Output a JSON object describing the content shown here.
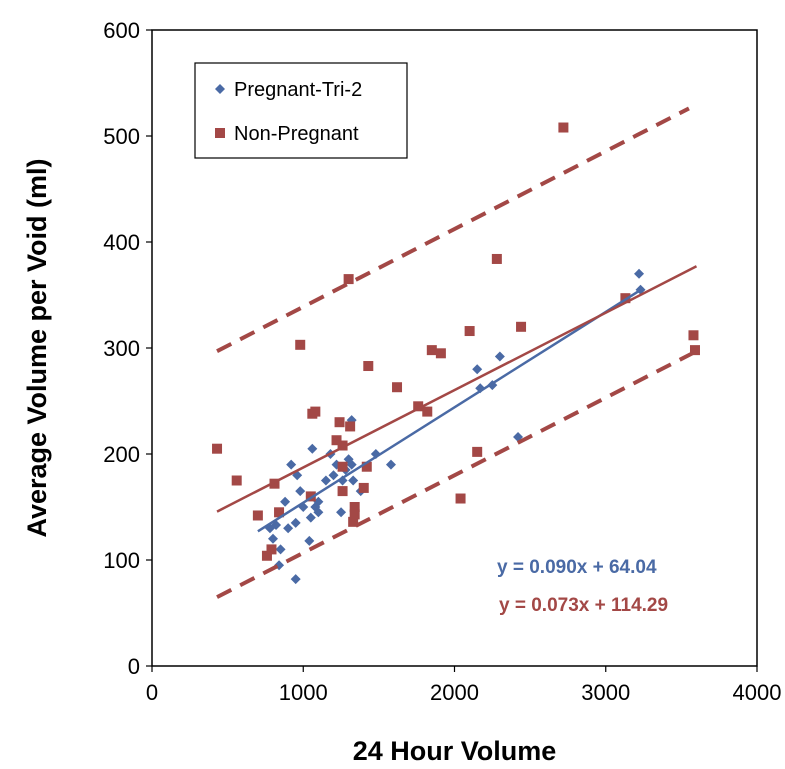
{
  "chart_data": {
    "type": "scatter",
    "xlabel": "24 Hour Volume",
    "ylabel": "Average Volume per Void (ml)",
    "xlim": [
      0,
      4000
    ],
    "ylim": [
      0,
      600
    ],
    "x_ticks": [
      "0",
      "1000",
      "2000",
      "3000",
      "4000"
    ],
    "y_ticks": [
      "0",
      "100",
      "200",
      "300",
      "400",
      "500",
      "600"
    ],
    "grid": false,
    "legend_position": "top-left",
    "series": [
      {
        "name": "Pregnant-Tri-2",
        "color": "#4a6aa5",
        "marker": "diamond",
        "points": [
          [
            780,
            130
          ],
          [
            800,
            120
          ],
          [
            820,
            133
          ],
          [
            840,
            95
          ],
          [
            850,
            110
          ],
          [
            880,
            155
          ],
          [
            900,
            130
          ],
          [
            920,
            190
          ],
          [
            950,
            82
          ],
          [
            950,
            135
          ],
          [
            960,
            180
          ],
          [
            980,
            165
          ],
          [
            1000,
            150
          ],
          [
            1040,
            118
          ],
          [
            1050,
            140
          ],
          [
            1050,
            160
          ],
          [
            1060,
            205
          ],
          [
            1080,
            150
          ],
          [
            1100,
            145
          ],
          [
            1100,
            155
          ],
          [
            1150,
            175
          ],
          [
            1180,
            200
          ],
          [
            1200,
            180
          ],
          [
            1220,
            190
          ],
          [
            1250,
            145
          ],
          [
            1260,
            175
          ],
          [
            1280,
            185
          ],
          [
            1300,
            195
          ],
          [
            1320,
            190
          ],
          [
            1320,
            232
          ],
          [
            1330,
            175
          ],
          [
            1380,
            165
          ],
          [
            1480,
            200
          ],
          [
            1580,
            190
          ],
          [
            2150,
            280
          ],
          [
            2170,
            262
          ],
          [
            2250,
            265
          ],
          [
            2300,
            292
          ],
          [
            2420,
            216
          ],
          [
            3220,
            370
          ],
          [
            3230,
            355
          ]
        ],
        "trendline": {
          "slope": 0.09,
          "intercept": 64.04,
          "x_range": [
            700,
            3250
          ],
          "equation": "y = 0.090x + 64.04"
        }
      },
      {
        "name": "Non-Pregnant",
        "color": "#a34846",
        "marker": "square",
        "points": [
          [
            430,
            205
          ],
          [
            560,
            175
          ],
          [
            700,
            142
          ],
          [
            760,
            104
          ],
          [
            790,
            110
          ],
          [
            810,
            172
          ],
          [
            840,
            145
          ],
          [
            980,
            303
          ],
          [
            1050,
            160
          ],
          [
            1060,
            238
          ],
          [
            1080,
            240
          ],
          [
            1220,
            213
          ],
          [
            1240,
            230
          ],
          [
            1260,
            165
          ],
          [
            1260,
            188
          ],
          [
            1260,
            208
          ],
          [
            1300,
            365
          ],
          [
            1310,
            226
          ],
          [
            1330,
            136
          ],
          [
            1340,
            143
          ],
          [
            1340,
            150
          ],
          [
            1400,
            168
          ],
          [
            1420,
            188
          ],
          [
            1430,
            283
          ],
          [
            1620,
            263
          ],
          [
            1760,
            245
          ],
          [
            1820,
            240
          ],
          [
            1850,
            298
          ],
          [
            1910,
            295
          ],
          [
            2040,
            158
          ],
          [
            2100,
            316
          ],
          [
            2150,
            202
          ],
          [
            2280,
            384
          ],
          [
            2440,
            320
          ],
          [
            2720,
            508
          ],
          [
            3130,
            347
          ],
          [
            3580,
            312
          ],
          [
            3590,
            298
          ]
        ],
        "trendline": {
          "slope": 0.073,
          "intercept": 114.29,
          "x_range": [
            430,
            3600
          ],
          "equation": "y = 0.073x + 114.29"
        },
        "prediction_band": {
          "upper": [
            [
              430,
              297
            ],
            [
              3550,
              526
            ]
          ],
          "lower": [
            [
              430,
              65
            ],
            [
              3600,
              297
            ]
          ]
        }
      }
    ]
  }
}
